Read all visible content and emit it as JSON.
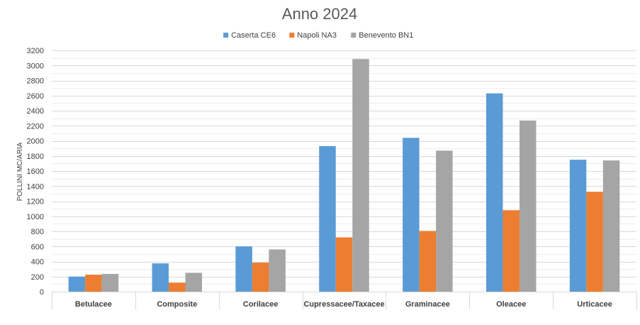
{
  "chart_data": {
    "type": "bar",
    "title": "Anno 2024",
    "ylabel": "POLLINI MC/ARIA",
    "xlabel": "",
    "ylim": [
      0,
      3200
    ],
    "ytick_step": 200,
    "ytick_labels": [
      "0",
      "200",
      "400",
      "600",
      "800",
      "1000",
      "1200",
      "1400",
      "1600",
      "1800",
      "2000",
      "2200",
      "2400",
      "2600",
      "2800",
      "3000",
      "3200"
    ],
    "grid": true,
    "legend_position": "top-center",
    "categories": [
      "Betulacee",
      "Composite",
      "Corilacee",
      "Cupressacee/Taxacee",
      "Graminacee",
      "Oleacee",
      "Urticacee"
    ],
    "series": [
      {
        "name": "Caserta CE6",
        "color": "#5B9BD5",
        "values": [
          200,
          375,
          600,
          1930,
          2040,
          2630,
          1750
        ]
      },
      {
        "name": "Napoli NA3",
        "color": "#ED7D31",
        "values": [
          225,
          120,
          385,
          720,
          805,
          1080,
          1325
        ]
      },
      {
        "name": "Benevento BN1",
        "color": "#A5A5A5",
        "values": [
          235,
          250,
          560,
          3085,
          1870,
          2270,
          1740
        ]
      }
    ]
  }
}
